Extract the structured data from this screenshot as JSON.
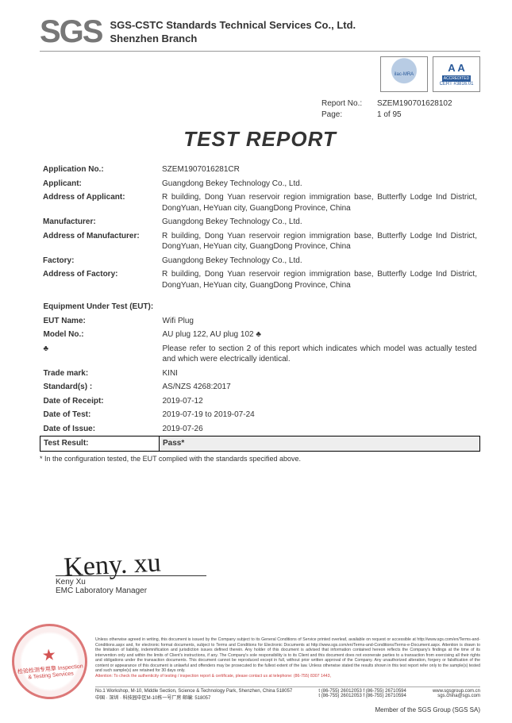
{
  "header": {
    "logo_text": "SGS",
    "company_line1": "SGS-CSTC Standards Technical Services Co., Ltd.",
    "company_line2": "Shenzhen Branch",
    "accred1_label": "ilac-MRA",
    "accred2_big": "A  A",
    "accred2_bar": "ACCREDITED",
    "accred2_cert": "CERT #3816.01"
  },
  "report_meta": {
    "no_label": "Report No.:",
    "no_value": "SZEM190701628102",
    "page_label": "Page:",
    "page_value": "1 of 95"
  },
  "title": "TEST REPORT",
  "applicant_section": [
    {
      "label": "Application No.:",
      "value": "SZEM1907016281CR"
    },
    {
      "label": "Applicant:",
      "value": "Guangdong Bekey Technology Co., Ltd."
    },
    {
      "label": "Address of Applicant:",
      "value": "R building, Dong Yuan reservoir region immigration base, Butterfly Lodge Ind District, DongYuan, HeYuan city, GuangDong Province, China"
    },
    {
      "label": "Manufacturer:",
      "value": "Guangdong Bekey Technology Co., Ltd."
    },
    {
      "label": "Address of Manufacturer:",
      "value": "R building, Dong Yuan reservoir region immigration base, Butterfly Lodge Ind District, DongYuan, HeYuan city, GuangDong Province, China"
    },
    {
      "label": "Factory:",
      "value": "Guangdong Bekey Technology Co., Ltd."
    },
    {
      "label": "Address of Factory:",
      "value": "R building, Dong Yuan reservoir region immigration base, Butterfly Lodge Ind District, DongYuan, HeYuan city, GuangDong Province, China"
    }
  ],
  "eut_heading": "Equipment Under Test (EUT):",
  "eut_section": [
    {
      "label": "EUT Name:",
      "value": "Wifi Plug"
    },
    {
      "label": "Model No.:",
      "value": "AU plug 122, AU plug 102      ♣"
    },
    {
      "label": "♣",
      "value": "Please refer to section 2 of this report which indicates which model was actually tested and which were electrically identical."
    },
    {
      "label": "Trade mark:",
      "value": "KINI"
    },
    {
      "label": "Standard(s) :",
      "value": "AS/NZS 4268:2017"
    },
    {
      "label": "Date of Receipt:",
      "value": "2019-07-12"
    },
    {
      "label": "Date of Test:",
      "value": "2019-07-19  to  2019-07-24"
    },
    {
      "label": "Date of Issue:",
      "value": "2019-07-26"
    }
  ],
  "result_row": {
    "label": "Test Result:",
    "value": "Pass*"
  },
  "result_footnote": "* In the configuration tested, the EUT complied with the standards specified above.",
  "signature": {
    "script": "Keny. xu",
    "name": "Keny Xu",
    "role": "EMC Laboratory Manager"
  },
  "stamp_text": "检验检测专用章\nInspection & Testing Services",
  "fine_print": "Unless otherwise agreed in writing, this document is issued by the Company subject to its General Conditions of Service printed overleaf, available on request or accessible at http://www.sgs.com/en/Terms-and-Conditions.aspx and, for electronic format documents, subject to Terms and Conditions for Electronic Documents at http://www.sgs.com/en/Terms-and-Conditions/Terms-e-Document.aspx. Attention is drawn to the limitation of liability, indemnification and jurisdiction issues defined therein. Any holder of this document is advised that information contained hereon reflects the Company's findings at the time of its intervention only and within the limits of Client's instructions, if any. The Company's sole responsibility is to its Client and this document does not exonerate parties to a transaction from exercising all their rights and obligations under the transaction documents. This document cannot be reproduced except in full, without prior written approval of the Company. Any unauthorized alteration, forgery or falsification of the content or appearance of this document is unlawful and offenders may be prosecuted to the fullest extent of the law. Unless otherwise stated the results shown in this test report refer only to the sample(s) tested and such sample(s) are retained for 30 days only.",
  "fine_print_attention": "Attention: To check the authenticity of testing / inspection report & certificate, please contact us at telephone: (86-755) 8307 1443,",
  "contact": {
    "addr_en": "No.1 Workshop, M-10, Middle Section, Science & Technology Park, Shenzhen, China  518057",
    "addr_cn": "中国 · 深圳 · 科技园中区M-10栋一号厂房    邮编: 518057",
    "tel": "t (86-755) 26012053  f (86-755) 26710594",
    "tel2": "t (86-755) 26012053  f (86-755) 26710594",
    "site": "www.sgsgroup.com.cn",
    "email": "sgs.china@sgs.com"
  },
  "member_line": "Member of the SGS Group (SGS SA)"
}
